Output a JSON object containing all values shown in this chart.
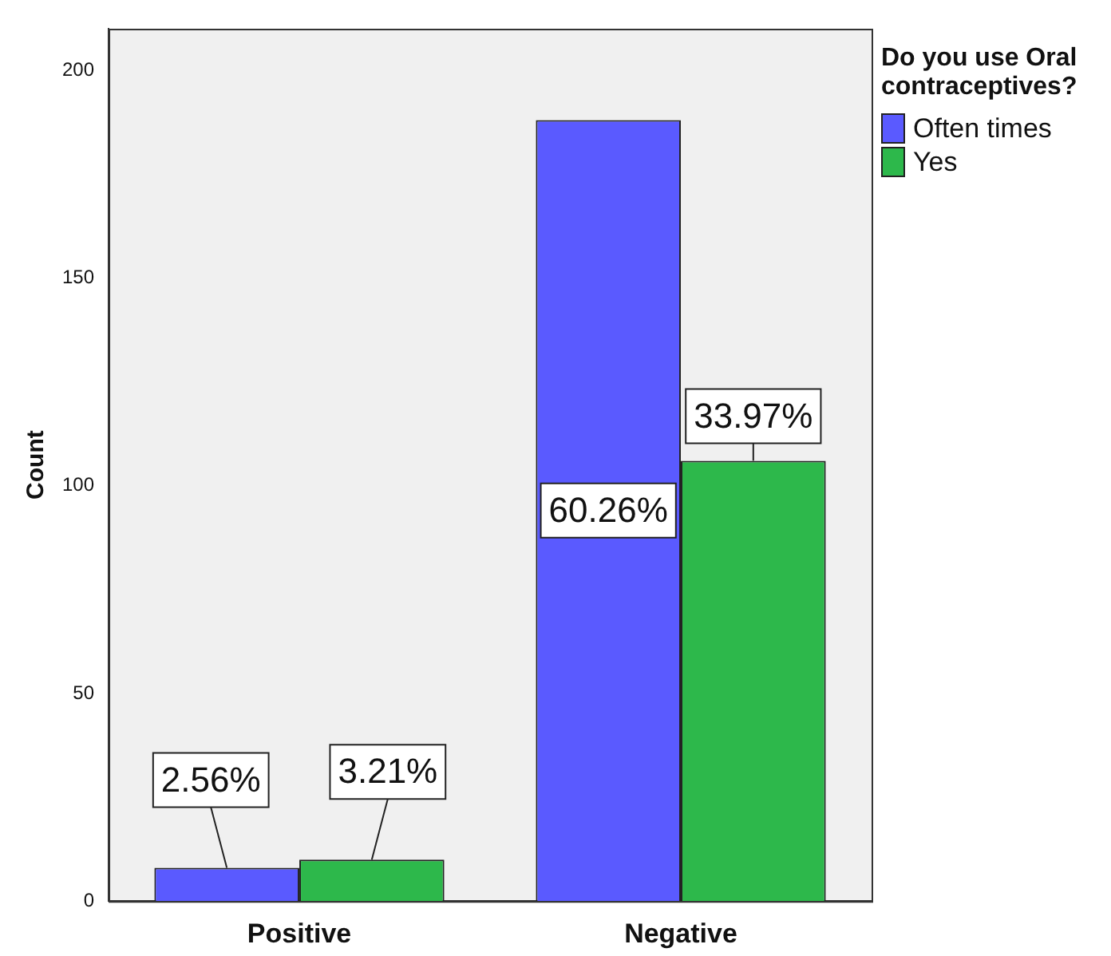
{
  "chart_data": {
    "type": "bar",
    "ylabel": "Count",
    "legend_title": "Do you use Oral contraceptives?",
    "categories": [
      "Positive",
      "Negative"
    ],
    "series": [
      {
        "name": "Often times",
        "color": "#5a5aff",
        "values": [
          8,
          188
        ]
      },
      {
        "name": "Yes",
        "color": "#2db84b",
        "values": [
          10,
          106
        ]
      }
    ],
    "annotations": [
      {
        "text": "2.56%",
        "x": "Positive",
        "y": 8
      },
      {
        "text": "3.21%",
        "x": "Positive",
        "y": 10
      },
      {
        "text": "60.26%",
        "x": "Negative",
        "y": 94
      },
      {
        "text": "33.97%",
        "x": "Negative",
        "y": 106
      }
    ],
    "ylim": [
      0,
      210
    ],
    "yticks": [
      0,
      50,
      100,
      150,
      200
    ],
    "grid": false,
    "legend": "top right"
  }
}
